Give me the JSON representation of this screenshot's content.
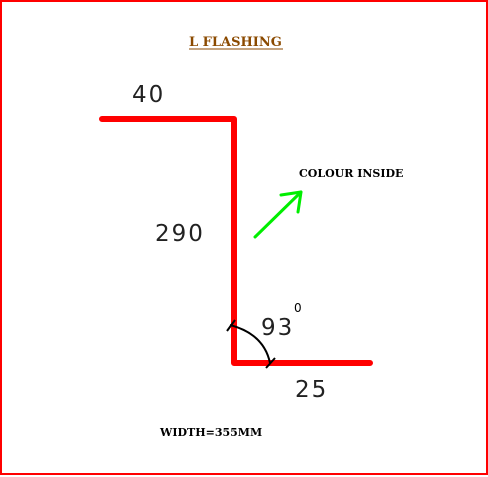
{
  "title": "L FLASHING",
  "dimensions": {
    "top_flange": "40",
    "vertical": "290",
    "angle": "93",
    "angle_degree_mark": "0",
    "bottom_flange": "25"
  },
  "colour_note": "COLOUR INSIDE",
  "width_note": "WIDTH=355MM",
  "colors": {
    "border": "#ff0000",
    "profile": "#ff0000",
    "arrow": "#00ee00",
    "title": "#8b4a00"
  },
  "icons": {
    "colour_side_indicator": "arrow-up-right-icon",
    "angle_marker": "arc-icon"
  }
}
